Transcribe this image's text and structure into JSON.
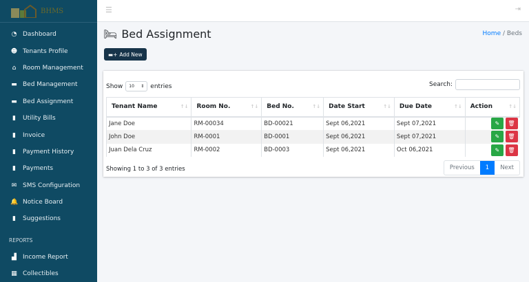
{
  "app": {
    "logo_text": "BHMS"
  },
  "sidebar": {
    "items": [
      {
        "label": "Dashboard",
        "icon": "tachometer-icon",
        "glyph": "◔"
      },
      {
        "label": "Tenants Profile",
        "icon": "users-icon",
        "glyph": "☻"
      },
      {
        "label": "Room Management",
        "icon": "home-icon",
        "glyph": "⌂"
      },
      {
        "label": "Bed Management",
        "icon": "bed-icon",
        "glyph": "▬"
      },
      {
        "label": "Bed Assignment",
        "icon": "bed-icon",
        "glyph": "▬"
      },
      {
        "label": "Utility Bills",
        "icon": "file-icon",
        "glyph": "▮"
      },
      {
        "label": "Invoice",
        "icon": "file-icon",
        "glyph": "▮"
      },
      {
        "label": "Payment History",
        "icon": "file-icon",
        "glyph": "▮"
      },
      {
        "label": "Payments",
        "icon": "file-icon",
        "glyph": "▮"
      },
      {
        "label": "SMS Configuration",
        "icon": "sms-icon",
        "glyph": "✉"
      },
      {
        "label": "Notice Board",
        "icon": "bell-icon",
        "glyph": "🔔"
      },
      {
        "label": "Suggestions",
        "icon": "file-icon",
        "glyph": "▮"
      }
    ],
    "section": "REPORTS",
    "reports": [
      {
        "label": "Income Report",
        "icon": "chart-icon",
        "glyph": "▟"
      },
      {
        "label": "Collectibles",
        "icon": "table-icon",
        "glyph": "▦"
      }
    ]
  },
  "header": {
    "title": "Bed Assignment",
    "breadcrumb": [
      "Home",
      "Beds"
    ],
    "add_label": "Add New"
  },
  "table": {
    "show_label": "Show",
    "entries_label": "entries",
    "page_size": "10",
    "search_label": "Search:",
    "search_value": "",
    "columns": [
      "Tenant Name",
      "Room No.",
      "Bed No.",
      "Date Start",
      "Due Date",
      "Action"
    ],
    "rows": [
      [
        "Jane Doe",
        "RM-00034",
        "BD-00021",
        "Sept 06,2021",
        "Sept 07,2021"
      ],
      [
        "John Doe",
        "RM-0001",
        "BD-0001",
        "Sept 06,2021",
        "Sept 07,2021"
      ],
      [
        "Juan Dela Cruz",
        "RM-0002",
        "BD-0003",
        "Sept 06,2021",
        "Oct 06,2021"
      ]
    ],
    "info": "Showing 1 to 3 of 3 entries",
    "pagination": {
      "previous": "Previous",
      "current": "1",
      "next": "Next"
    }
  }
}
